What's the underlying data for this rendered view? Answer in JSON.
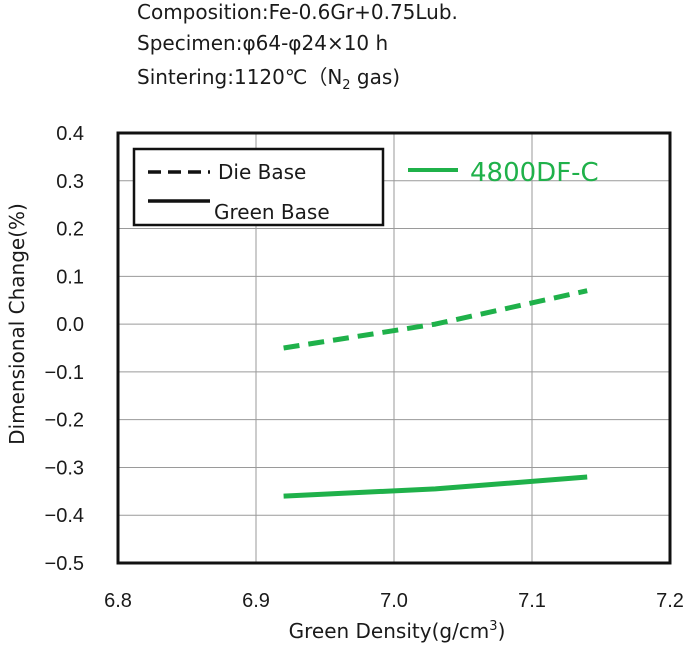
{
  "header": {
    "composition_line": "Composition:Fe-0.6Gr+0.75Lub.",
    "specimen_line": "Specimen:φ64-φ24×10 h",
    "sintering_prefix": "Sintering:1120℃（N",
    "sintering_subscript": "2",
    "sintering_suffix": " gas)"
  },
  "legend": {
    "die_base_label": "Die Base",
    "green_base_label": "Green Base"
  },
  "material": {
    "label": "4800DF-C",
    "color": "#1fb14a"
  },
  "chart_data": {
    "type": "line",
    "xlabel_main": "Green Density(g/cm",
    "xlabel_sup": "3",
    "xlabel_close": ")",
    "ylabel": "Dimensional Change(%)",
    "xlim": [
      6.8,
      7.2
    ],
    "ylim": [
      -0.5,
      0.4
    ],
    "x_ticks": [
      "6.8",
      "6.9",
      "7.0",
      "7.1",
      "7.2"
    ],
    "y_ticks": [
      "0.4",
      "0.3",
      "0.2",
      "0.1",
      "0.0",
      "−0.1",
      "−0.2",
      "−0.3",
      "−0.4",
      "−0.5"
    ],
    "grid": true,
    "series": [
      {
        "name": "Die Base",
        "style": "dashed",
        "x": [
          6.92,
          7.03,
          7.14
        ],
        "y": [
          -0.05,
          0.0,
          0.07
        ]
      },
      {
        "name": "Green Base",
        "style": "solid",
        "x": [
          6.92,
          7.03,
          7.14
        ],
        "y": [
          -0.36,
          -0.345,
          -0.32
        ]
      }
    ]
  }
}
